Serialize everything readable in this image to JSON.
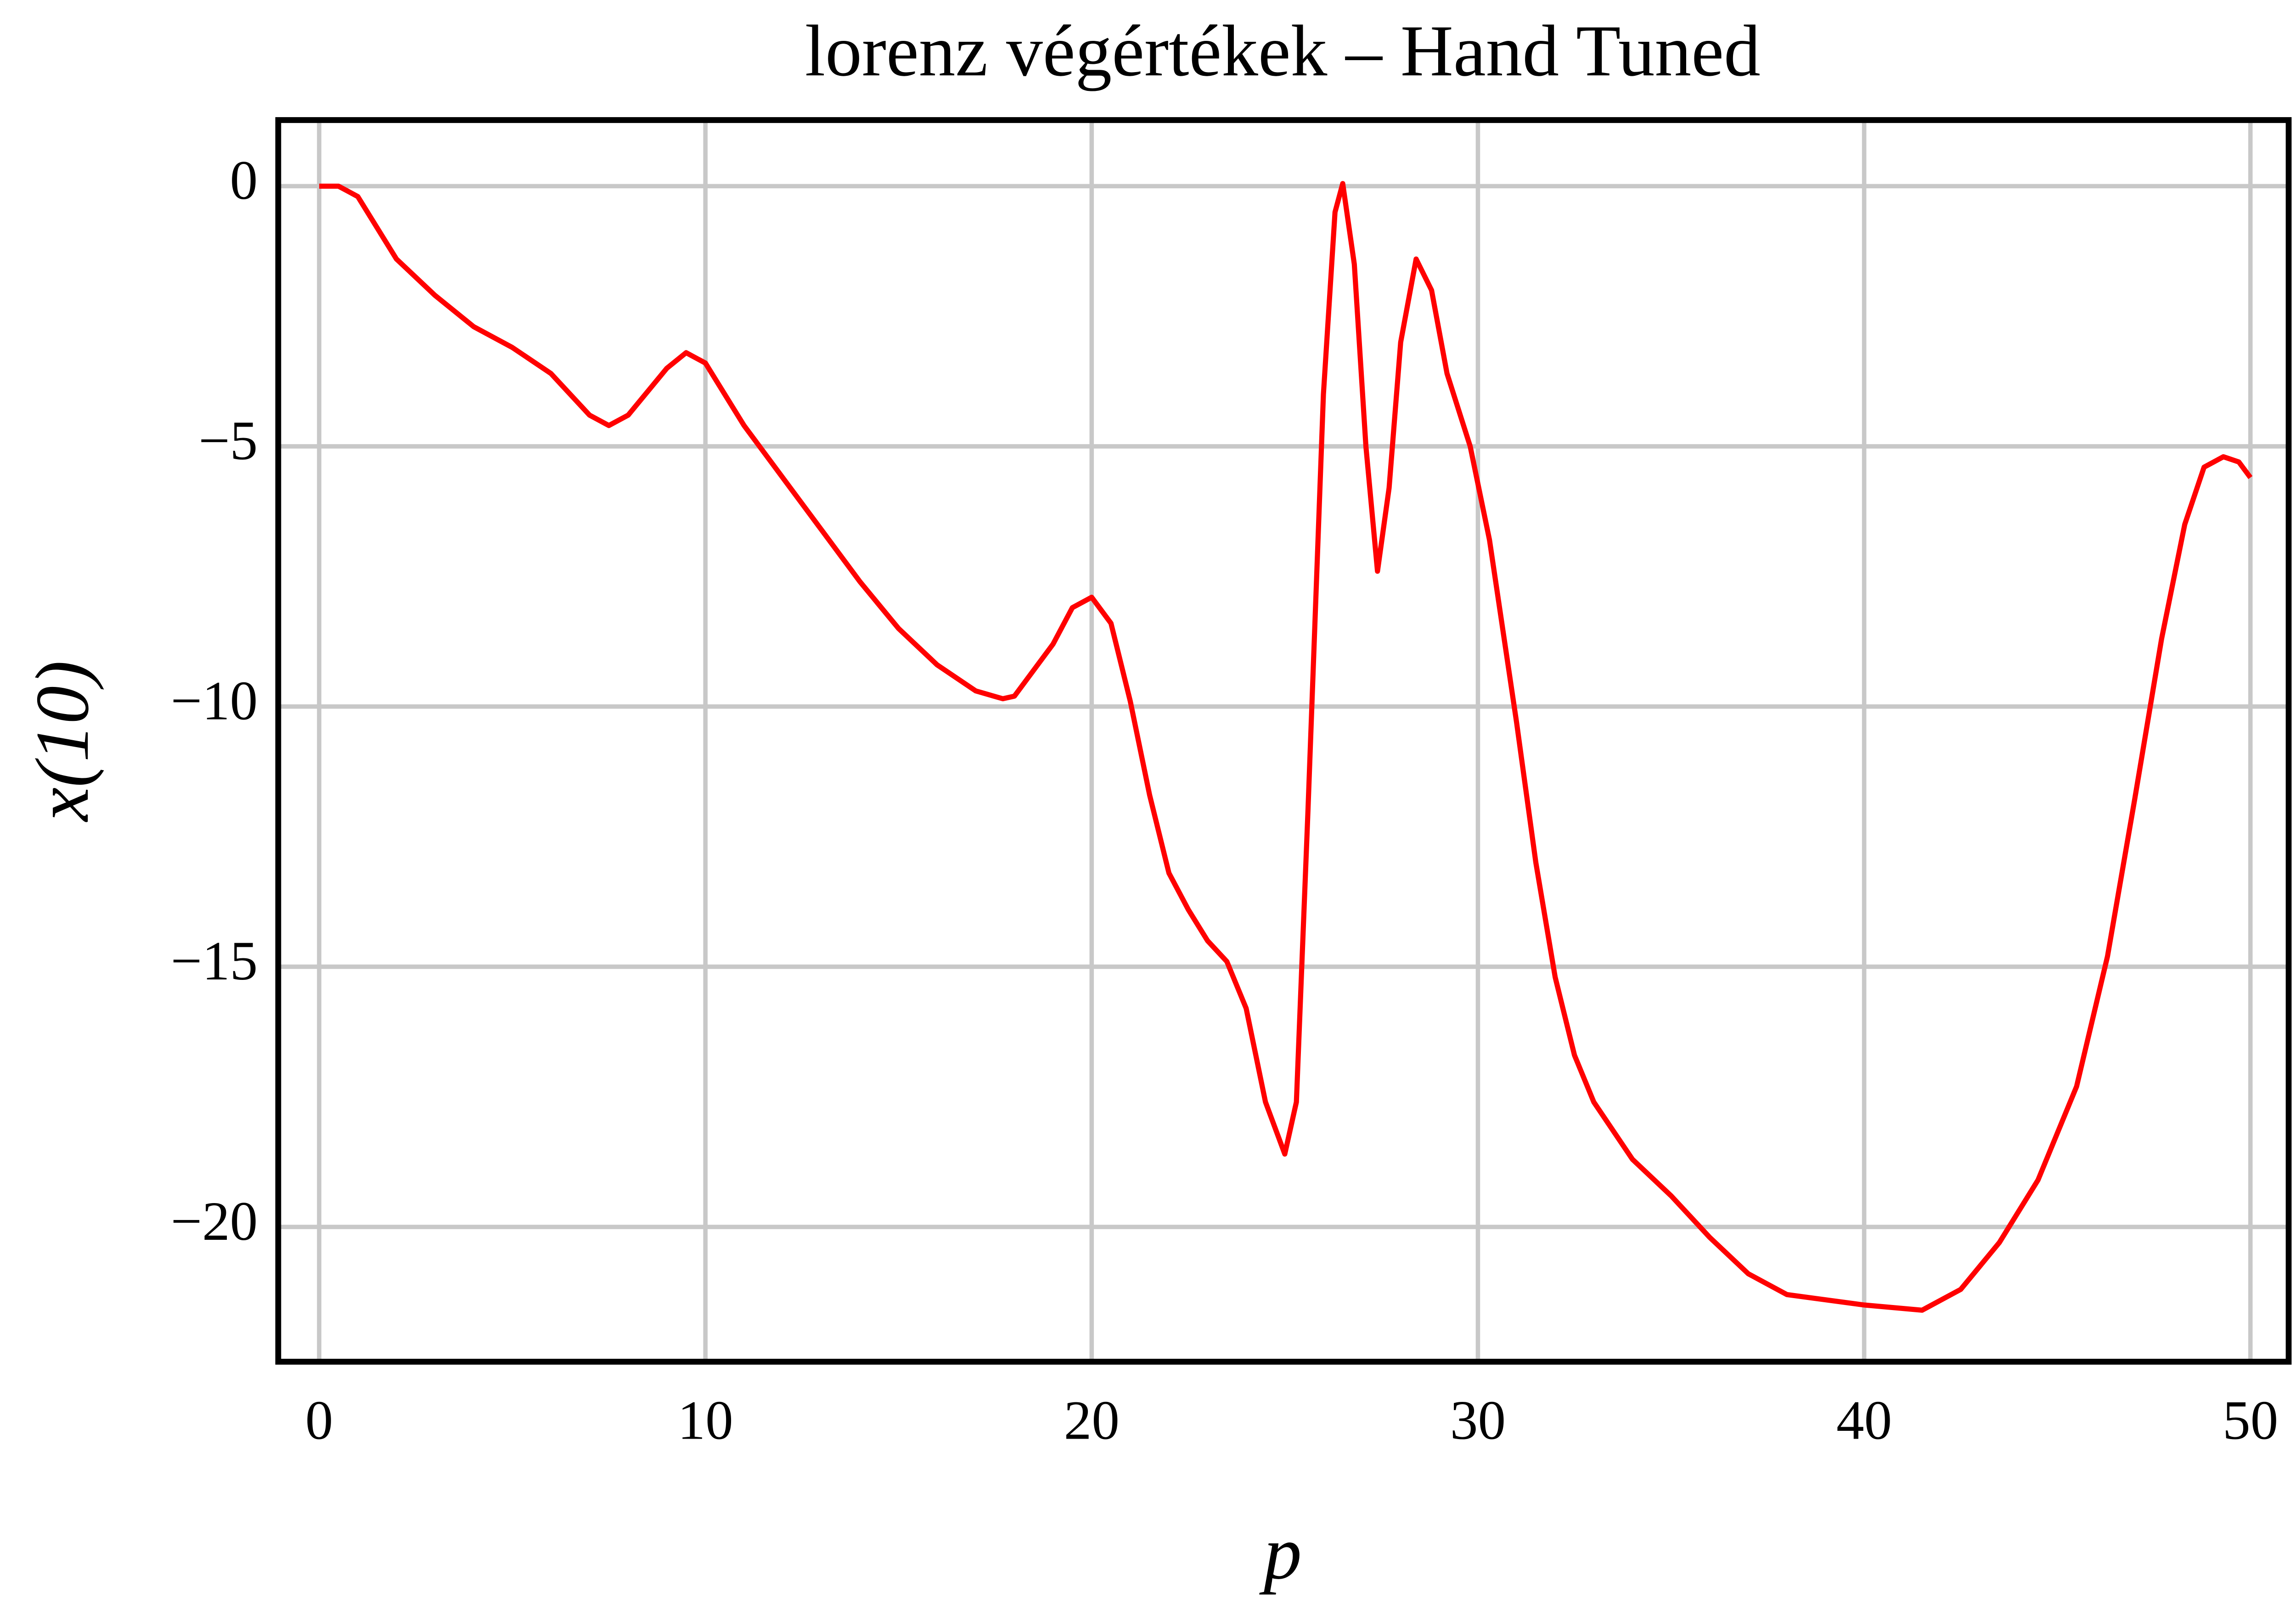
{
  "chart_data": {
    "type": "line",
    "title": "lorenz végértékek – Hand Tuned",
    "xlabel": "p",
    "ylabel": "x(10)",
    "x": [
      0,
      0.5,
      1,
      1.5,
      2,
      3,
      4,
      5,
      6,
      7,
      7.5,
      8,
      9,
      9.5,
      10,
      11,
      12,
      13,
      14,
      15,
      16,
      17,
      17.7,
      18,
      19,
      19.5,
      20,
      20.5,
      21,
      21.5,
      22,
      22.5,
      23,
      23.5,
      24,
      24.5,
      25,
      25.3,
      25.6,
      26,
      26.3,
      26.5,
      26.8,
      27.1,
      27.4,
      27.7,
      28,
      28.4,
      28.8,
      29.2,
      29.8,
      30.3,
      31,
      31.5,
      32,
      32.5,
      33,
      34,
      35,
      36,
      37,
      38,
      40,
      41.5,
      42.5,
      43.5,
      44.5,
      45.5,
      46.3,
      47,
      47.7,
      48.3,
      48.8,
      49.3,
      49.7,
      50
    ],
    "series": [
      {
        "name": "x(10)",
        "color": "#ff0000",
        "values": [
          0,
          0,
          -0.2,
          -0.8,
          -1.4,
          -2.1,
          -2.7,
          -3.1,
          -3.6,
          -4.4,
          -4.6,
          -4.4,
          -3.5,
          -3.2,
          -3.4,
          -4.6,
          -5.6,
          -6.6,
          -7.6,
          -8.5,
          -9.2,
          -9.7,
          -9.85,
          -9.8,
          -8.8,
          -8.1,
          -7.9,
          -8.4,
          -9.9,
          -11.7,
          -13.2,
          -13.9,
          -14.5,
          -14.9,
          -15.8,
          -17.6,
          -18.6,
          -17.6,
          -12,
          -4,
          -0.5,
          0.05,
          -1.5,
          -5,
          -7.4,
          -5.8,
          -3,
          -1.4,
          -2,
          -3.6,
          -5,
          -6.8,
          -10.3,
          -13,
          -15.2,
          -16.7,
          -17.6,
          -18.7,
          -19.4,
          -20.2,
          -20.9,
          -21.3,
          -21.5,
          -21.6,
          -21.2,
          -20.3,
          -19.1,
          -17.3,
          -14.8,
          -11.8,
          -8.7,
          -6.5,
          -5.4,
          -5.2,
          -5.3,
          -5.6
        ]
      }
    ],
    "xlim": [
      -1.06,
      50.99
    ],
    "ylim": [
      -22.59,
      1.27
    ],
    "xticks": [
      0,
      10,
      20,
      30,
      40,
      50
    ],
    "yticks": [
      0,
      {
        "value": -5,
        "label": "−5"
      },
      {
        "value": -10,
        "label": "−10"
      },
      {
        "value": -15,
        "label": "−15"
      },
      {
        "value": -20,
        "label": "−20"
      }
    ],
    "grid": true
  }
}
